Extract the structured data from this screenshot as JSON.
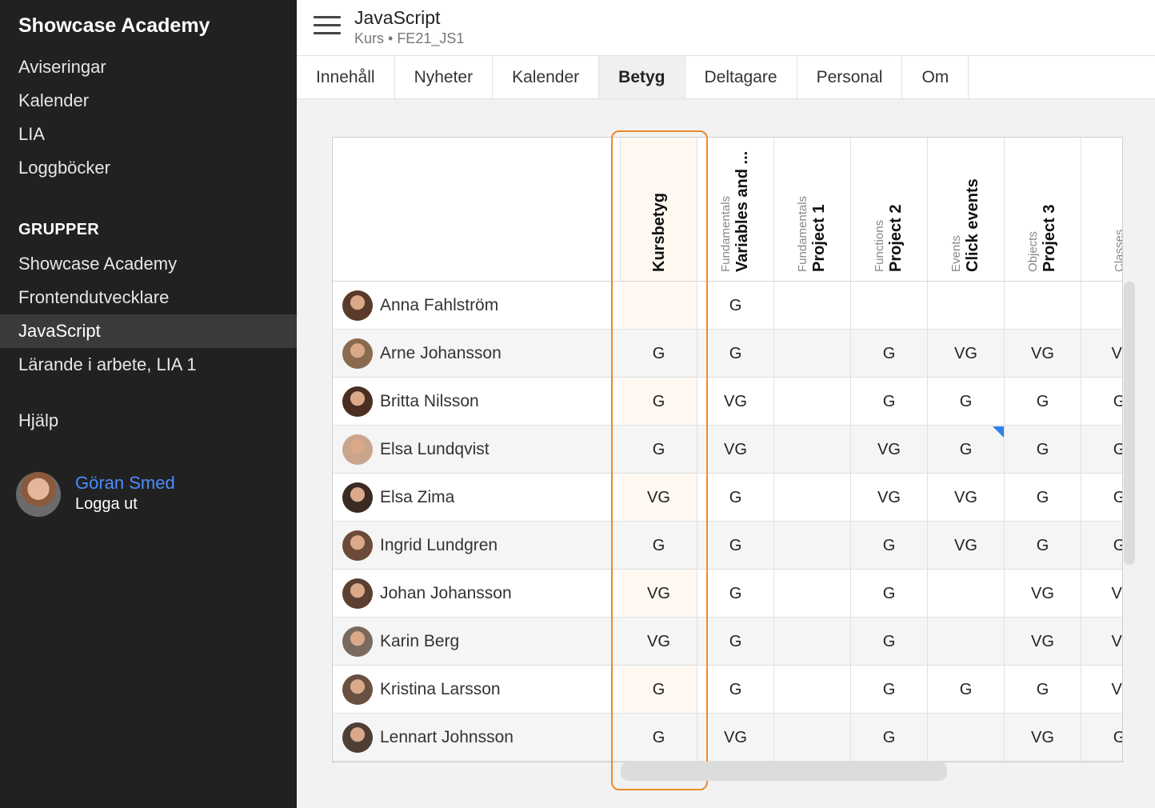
{
  "sidebar": {
    "brand": "Showcase Academy",
    "nav": [
      {
        "label": "Aviseringar",
        "active": false
      },
      {
        "label": "Kalender",
        "active": false
      },
      {
        "label": "LIA",
        "active": false
      },
      {
        "label": "Loggböcker",
        "active": false
      }
    ],
    "groups_heading": "GRUPPER",
    "groups": [
      {
        "label": "Showcase Academy",
        "active": false
      },
      {
        "label": "Frontendutvecklare",
        "active": false
      },
      {
        "label": "JavaScript",
        "active": true
      },
      {
        "label": "Lärande i arbete, LIA 1",
        "active": false
      }
    ],
    "help": "Hjälp",
    "user": {
      "name": "Göran Smed",
      "logout": "Logga ut"
    }
  },
  "header": {
    "title": "JavaScript",
    "subtitle": "Kurs • FE21_JS1"
  },
  "tabs": [
    {
      "label": "Innehåll",
      "active": false
    },
    {
      "label": "Nyheter",
      "active": false
    },
    {
      "label": "Kalender",
      "active": false
    },
    {
      "label": "Betyg",
      "active": true
    },
    {
      "label": "Deltagare",
      "active": false
    },
    {
      "label": "Personal",
      "active": false
    },
    {
      "label": "Om",
      "active": false
    }
  ],
  "grades": {
    "columns": [
      {
        "category": "",
        "name": "Kursbetyg"
      },
      {
        "category": "Fundamentals",
        "name": "Variables and ..."
      },
      {
        "category": "Fundamentals",
        "name": "Project 1"
      },
      {
        "category": "Functions",
        "name": "Project 2"
      },
      {
        "category": "Events",
        "name": "Click events"
      },
      {
        "category": "Objects",
        "name": "Project 3"
      },
      {
        "category": "Classes",
        "name": ""
      }
    ],
    "students": [
      {
        "name": "Anna Fahlström",
        "avatar_color": "#5a3a2a",
        "grades": [
          "",
          "G",
          "",
          "",
          "",
          "",
          ""
        ]
      },
      {
        "name": "Arne Johansson",
        "avatar_color": "#8a6a4e",
        "grades": [
          "G",
          "G",
          "",
          "G",
          "VG",
          "VG",
          "V("
        ]
      },
      {
        "name": "Britta Nilsson",
        "avatar_color": "#4a2e22",
        "grades": [
          "G",
          "VG",
          "",
          "G",
          "G",
          "G",
          "G"
        ]
      },
      {
        "name": "Elsa Lundqvist",
        "avatar_color": "#c9a58e",
        "grades": [
          "G",
          "VG",
          "",
          "VG",
          "G",
          "G",
          "G"
        ]
      },
      {
        "name": "Elsa Zima",
        "avatar_color": "#3a2a22",
        "grades": [
          "VG",
          "G",
          "",
          "VG",
          "VG",
          "G",
          "G"
        ]
      },
      {
        "name": "Ingrid Lundgren",
        "avatar_color": "#6b4a3a",
        "grades": [
          "G",
          "G",
          "",
          "G",
          "VG",
          "G",
          "G"
        ]
      },
      {
        "name": "Johan Johansson",
        "avatar_color": "#5b4032",
        "grades": [
          "VG",
          "G",
          "",
          "G",
          "",
          "VG",
          "V("
        ]
      },
      {
        "name": "Karin Berg",
        "avatar_color": "#7a6a5e",
        "grades": [
          "VG",
          "G",
          "",
          "G",
          "",
          "VG",
          "V("
        ]
      },
      {
        "name": "Kristina Larsson",
        "avatar_color": "#6a5040",
        "grades": [
          "G",
          "G",
          "",
          "G",
          "G",
          "G",
          "V("
        ]
      },
      {
        "name": "Lennart Johnsson",
        "avatar_color": "#4e3e34",
        "grades": [
          "G",
          "VG",
          "",
          "G",
          "",
          "VG",
          "G"
        ]
      }
    ]
  },
  "colors": {
    "accent_highlight": "#ec8a2a",
    "link": "#4c8cff",
    "flag": "#2f80ed",
    "sidebar_bg": "#212121"
  }
}
